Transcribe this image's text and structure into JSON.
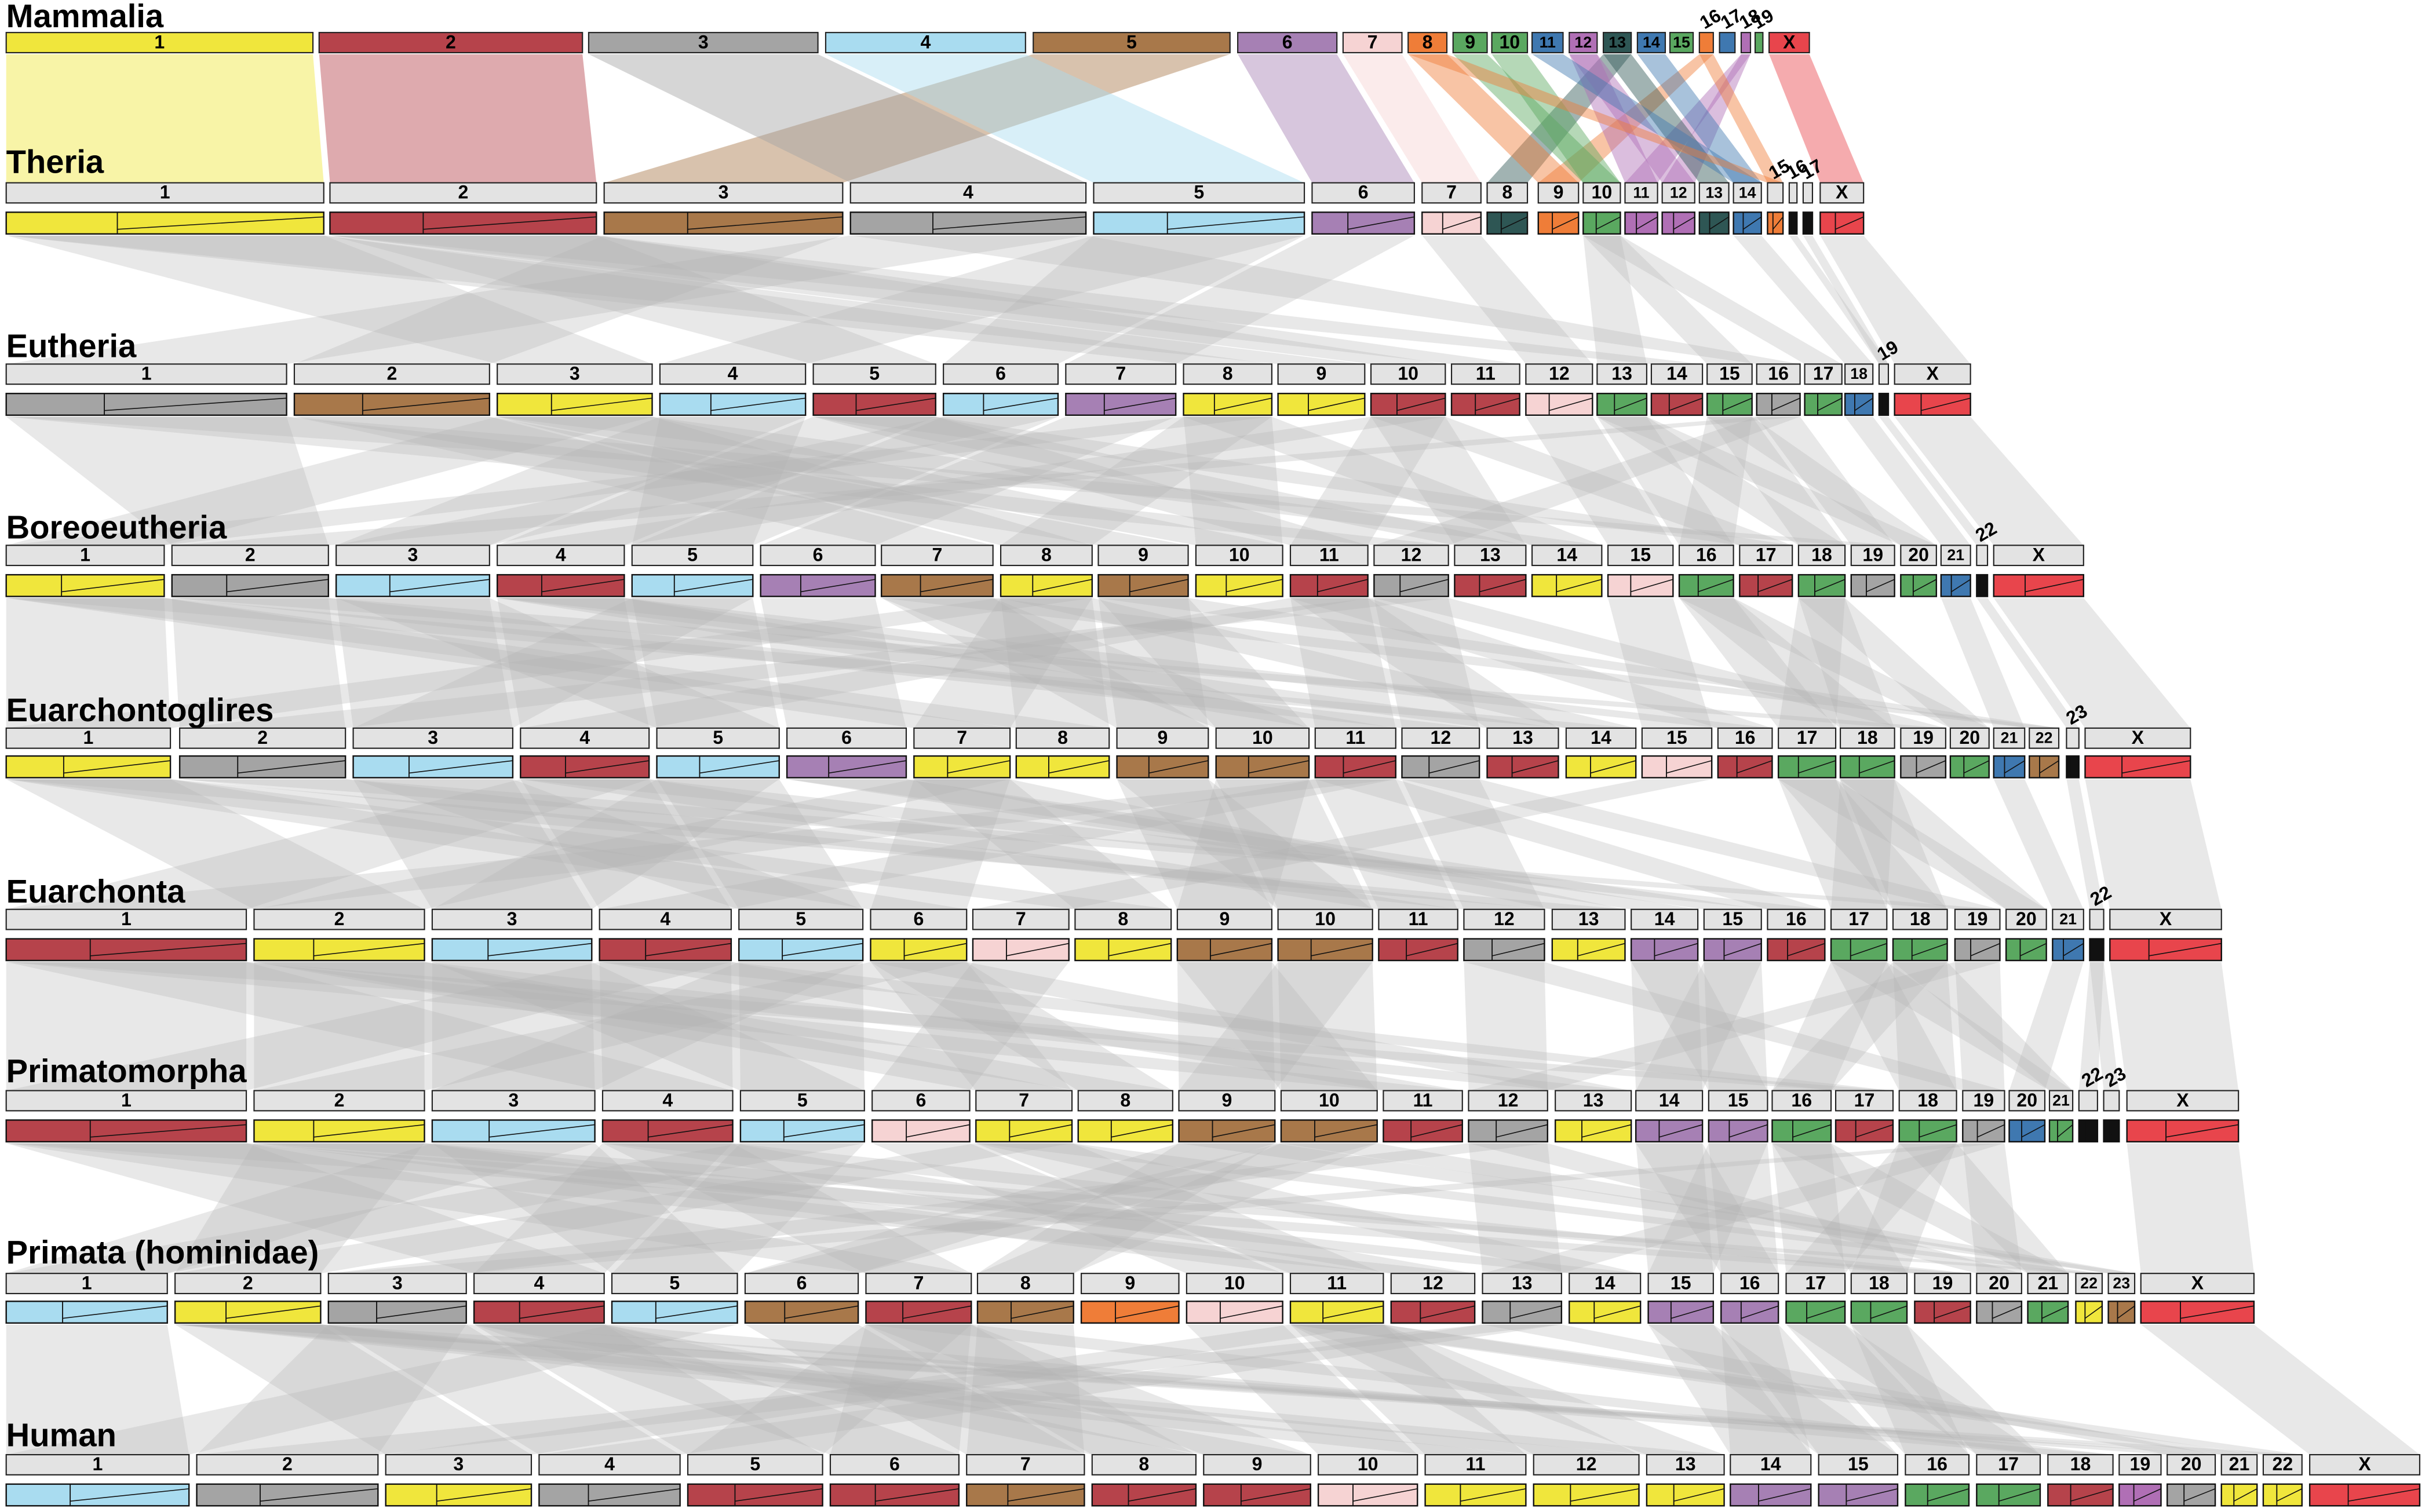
{
  "levels": [
    {
      "name": "Mammalia",
      "chromosomes": [
        "1",
        "2",
        "3",
        "4",
        "5",
        "6",
        "7",
        "8",
        "9",
        "10",
        "11",
        "12",
        "13",
        "14",
        "15",
        "16",
        "17",
        "18",
        "19",
        "X"
      ]
    },
    {
      "name": "Theria",
      "chromosomes": [
        "1",
        "2",
        "3",
        "4",
        "5",
        "6",
        "7",
        "8",
        "9",
        "10",
        "11",
        "12",
        "13",
        "14",
        "15",
        "16",
        "17",
        "X"
      ]
    },
    {
      "name": "Eutheria",
      "chromosomes": [
        "1",
        "2",
        "3",
        "4",
        "5",
        "6",
        "7",
        "8",
        "9",
        "10",
        "11",
        "12",
        "13",
        "14",
        "15",
        "16",
        "17",
        "18",
        "19",
        "X"
      ]
    },
    {
      "name": "Boreoeutheria",
      "chromosomes": [
        "1",
        "2",
        "3",
        "4",
        "5",
        "6",
        "7",
        "8",
        "9",
        "10",
        "11",
        "12",
        "13",
        "14",
        "15",
        "16",
        "17",
        "18",
        "19",
        "20",
        "21",
        "22",
        "X"
      ]
    },
    {
      "name": "Euarchontoglires",
      "chromosomes": [
        "1",
        "2",
        "3",
        "4",
        "5",
        "6",
        "7",
        "8",
        "9",
        "10",
        "11",
        "12",
        "13",
        "14",
        "15",
        "16",
        "17",
        "18",
        "19",
        "20",
        "21",
        "22",
        "23",
        "X"
      ]
    },
    {
      "name": "Euarchonta",
      "chromosomes": [
        "1",
        "2",
        "3",
        "4",
        "5",
        "6",
        "7",
        "8",
        "9",
        "10",
        "11",
        "12",
        "13",
        "14",
        "15",
        "16",
        "17",
        "18",
        "19",
        "20",
        "21",
        "22",
        "X"
      ]
    },
    {
      "name": "Primatomorpha",
      "chromosomes": [
        "1",
        "2",
        "3",
        "4",
        "5",
        "6",
        "7",
        "8",
        "9",
        "10",
        "11",
        "12",
        "13",
        "14",
        "15",
        "16",
        "17",
        "18",
        "19",
        "20",
        "21",
        "22",
        "23",
        "X"
      ]
    },
    {
      "name": "Primata (hominidae)",
      "chromosomes": [
        "1",
        "2",
        "3",
        "4",
        "5",
        "6",
        "7",
        "8",
        "9",
        "10",
        "11",
        "12",
        "13",
        "14",
        "15",
        "16",
        "17",
        "18",
        "19",
        "20",
        "21",
        "22",
        "23",
        "X"
      ]
    },
    {
      "name": "Human",
      "chromosomes": [
        "1",
        "2",
        "3",
        "4",
        "5",
        "6",
        "7",
        "8",
        "9",
        "10",
        "11",
        "12",
        "13",
        "14",
        "15",
        "16",
        "17",
        "18",
        "19",
        "20",
        "21",
        "22",
        "X"
      ]
    }
  ]
}
